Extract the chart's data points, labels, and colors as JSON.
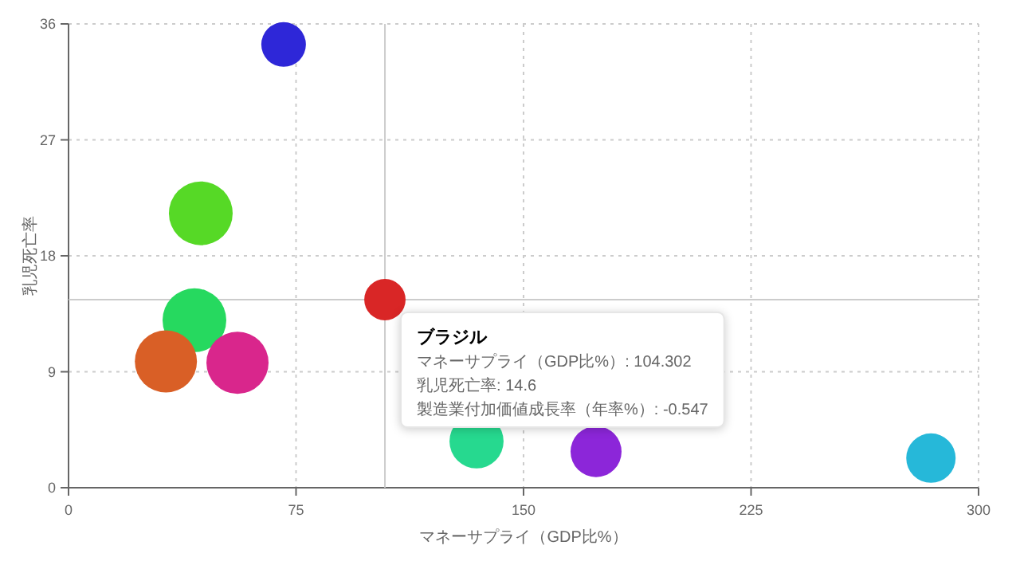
{
  "chart_data": {
    "type": "bubble",
    "xlabel": "マネーサプライ（GDP比%）",
    "ylabel": "乳児死亡率",
    "x": [
      70.9,
      43.6,
      104.302,
      41.5,
      32.1,
      55.7,
      134.5,
      173.9,
      284.3
    ],
    "values": [
      34.4,
      21.3,
      14.6,
      13.0,
      9.8,
      9.7,
      3.6,
      2.8,
      2.3
    ],
    "sizes": [
      0.49,
      1,
      0.42,
      1,
      0.95,
      0.95,
      0.72,
      0.64,
      0.6
    ],
    "colors": [
      "#2e27d8",
      "#56d926",
      "#d92626",
      "#26d95f",
      "#d95f26",
      "#d9268c",
      "#26d98f",
      "#8c26d9",
      "#26b8d9"
    ],
    "xlim": [
      0,
      300
    ],
    "ylim": [
      0,
      36
    ],
    "xticks": [
      0,
      75,
      150,
      225,
      300
    ],
    "yticks": [
      0,
      9,
      18,
      27,
      36
    ],
    "grid": true,
    "ref_lines": [
      {
        "axis": "x",
        "value": 104.302,
        "color": "#cccccc"
      },
      {
        "axis": "y",
        "value": 14.6,
        "color": "#cccccc"
      }
    ],
    "annotations": [
      {
        "text": "ブラジル",
        "x": 104.302,
        "y": 14.6
      },
      "マネーサプライ（GDP比%）: 104.302",
      "乳児死亡率: 14.6",
      "製造業付加価値成長率（年率%）: -0.547"
    ]
  }
}
